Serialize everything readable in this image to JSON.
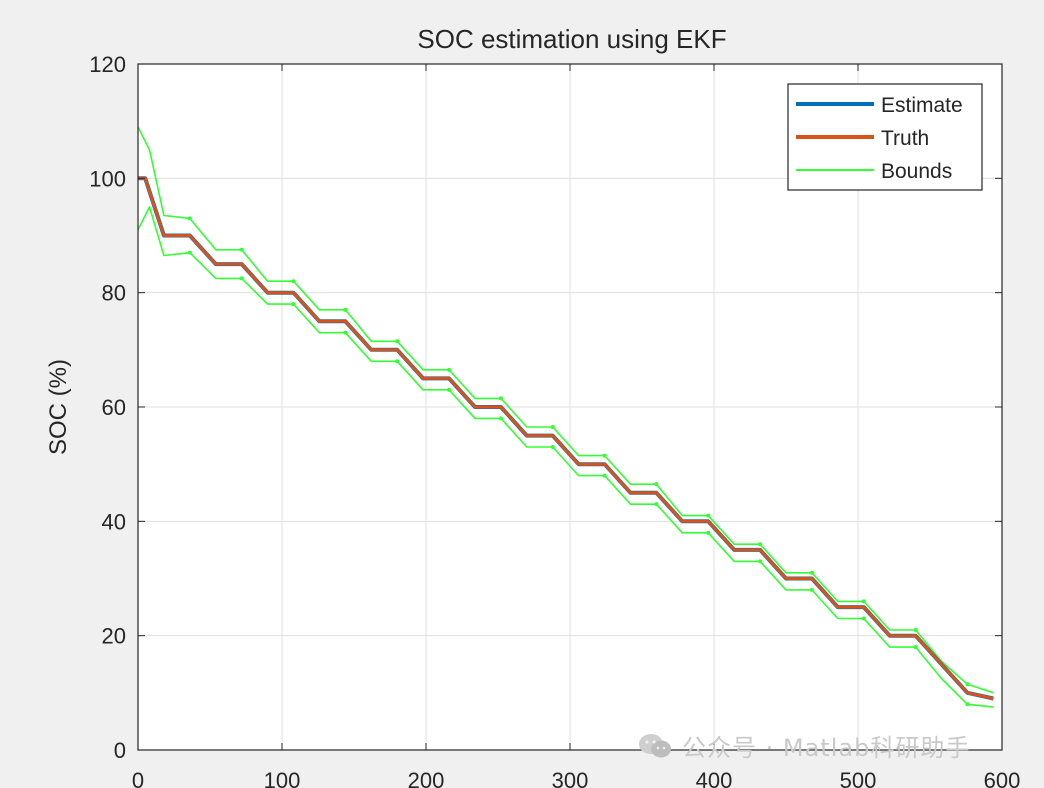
{
  "chart_data": {
    "type": "line",
    "title": "SOC estimation using EKF",
    "xlabel": "",
    "ylabel": "SOC (%)",
    "xlim": [
      0,
      600
    ],
    "ylim": [
      0,
      120
    ],
    "xticks": [
      0,
      100,
      200,
      300,
      400,
      500,
      600
    ],
    "yticks": [
      0,
      20,
      40,
      60,
      80,
      100,
      120
    ],
    "xtick_labels": [
      "0",
      "100",
      "200",
      "300",
      "400",
      "500",
      "600"
    ],
    "ytick_labels": [
      "0",
      "20",
      "40",
      "60",
      "80",
      "100",
      "120"
    ],
    "grid": true,
    "legend_position": "top-right",
    "legend": [
      "Estimate",
      "Truth",
      "Bounds"
    ],
    "series": [
      {
        "name": "Estimate",
        "color": "#0072bd",
        "x": [
          0,
          5,
          18,
          36,
          54,
          72,
          90,
          108,
          126,
          144,
          162,
          180,
          198,
          216,
          234,
          252,
          270,
          288,
          306,
          324,
          342,
          360,
          378,
          396,
          414,
          432,
          450,
          468,
          486,
          504,
          522,
          540,
          558,
          576,
          594
        ],
        "y": [
          100,
          100,
          90,
          90,
          85,
          85,
          80,
          80,
          75,
          75,
          70,
          70,
          65,
          65,
          60,
          60,
          55,
          55,
          50,
          50,
          45,
          45,
          40,
          40,
          35,
          35,
          30,
          30,
          25,
          25,
          20,
          20,
          15,
          10,
          9
        ]
      },
      {
        "name": "Truth",
        "color": "#d95319",
        "x": [
          0,
          5,
          18,
          36,
          54,
          72,
          90,
          108,
          126,
          144,
          162,
          180,
          198,
          216,
          234,
          252,
          270,
          288,
          306,
          324,
          342,
          360,
          378,
          396,
          414,
          432,
          450,
          468,
          486,
          504,
          522,
          540,
          558,
          576,
          594
        ],
        "y": [
          100,
          100,
          90,
          90,
          85,
          85,
          80,
          80,
          75,
          75,
          70,
          70,
          65,
          65,
          60,
          60,
          55,
          55,
          50,
          50,
          45,
          45,
          40,
          40,
          35,
          35,
          30,
          30,
          25,
          25,
          20,
          20,
          15,
          10,
          9
        ]
      },
      {
        "name": "Bounds",
        "color": "#33ff33",
        "x": [
          0,
          8,
          18,
          36,
          54,
          72,
          90,
          108,
          126,
          144,
          162,
          180,
          198,
          216,
          234,
          252,
          270,
          288,
          306,
          324,
          342,
          360,
          378,
          396,
          414,
          432,
          450,
          468,
          486,
          504,
          522,
          540,
          558,
          576,
          594
        ],
        "y": [
          109,
          105,
          93.5,
          93,
          87.5,
          87.5,
          82,
          82,
          77,
          77,
          71.5,
          71.5,
          66.5,
          66.5,
          61.5,
          61.5,
          56.5,
          56.5,
          51.5,
          51.5,
          46.5,
          46.5,
          41,
          41,
          36,
          36,
          31,
          31,
          26,
          26,
          21,
          21,
          15.5,
          11.5,
          10
        ]
      },
      {
        "name": "",
        "color": "#33ff33",
        "x": [
          0,
          8,
          18,
          36,
          54,
          72,
          90,
          108,
          126,
          144,
          162,
          180,
          198,
          216,
          234,
          252,
          270,
          288,
          306,
          324,
          342,
          360,
          378,
          396,
          414,
          432,
          450,
          468,
          486,
          504,
          522,
          540,
          558,
          576,
          594
        ],
        "y": [
          91,
          95,
          86.5,
          87,
          82.5,
          82.5,
          78,
          78,
          73,
          73,
          68,
          68,
          63,
          63,
          58,
          58,
          53,
          53,
          48,
          48,
          43,
          43,
          38,
          38,
          33,
          33,
          28,
          28,
          23,
          23,
          18,
          18,
          12.5,
          8,
          7.5
        ]
      }
    ]
  },
  "watermark": {
    "icon": "wechat-icon",
    "text": "公众号 · Matlab科研助手"
  }
}
